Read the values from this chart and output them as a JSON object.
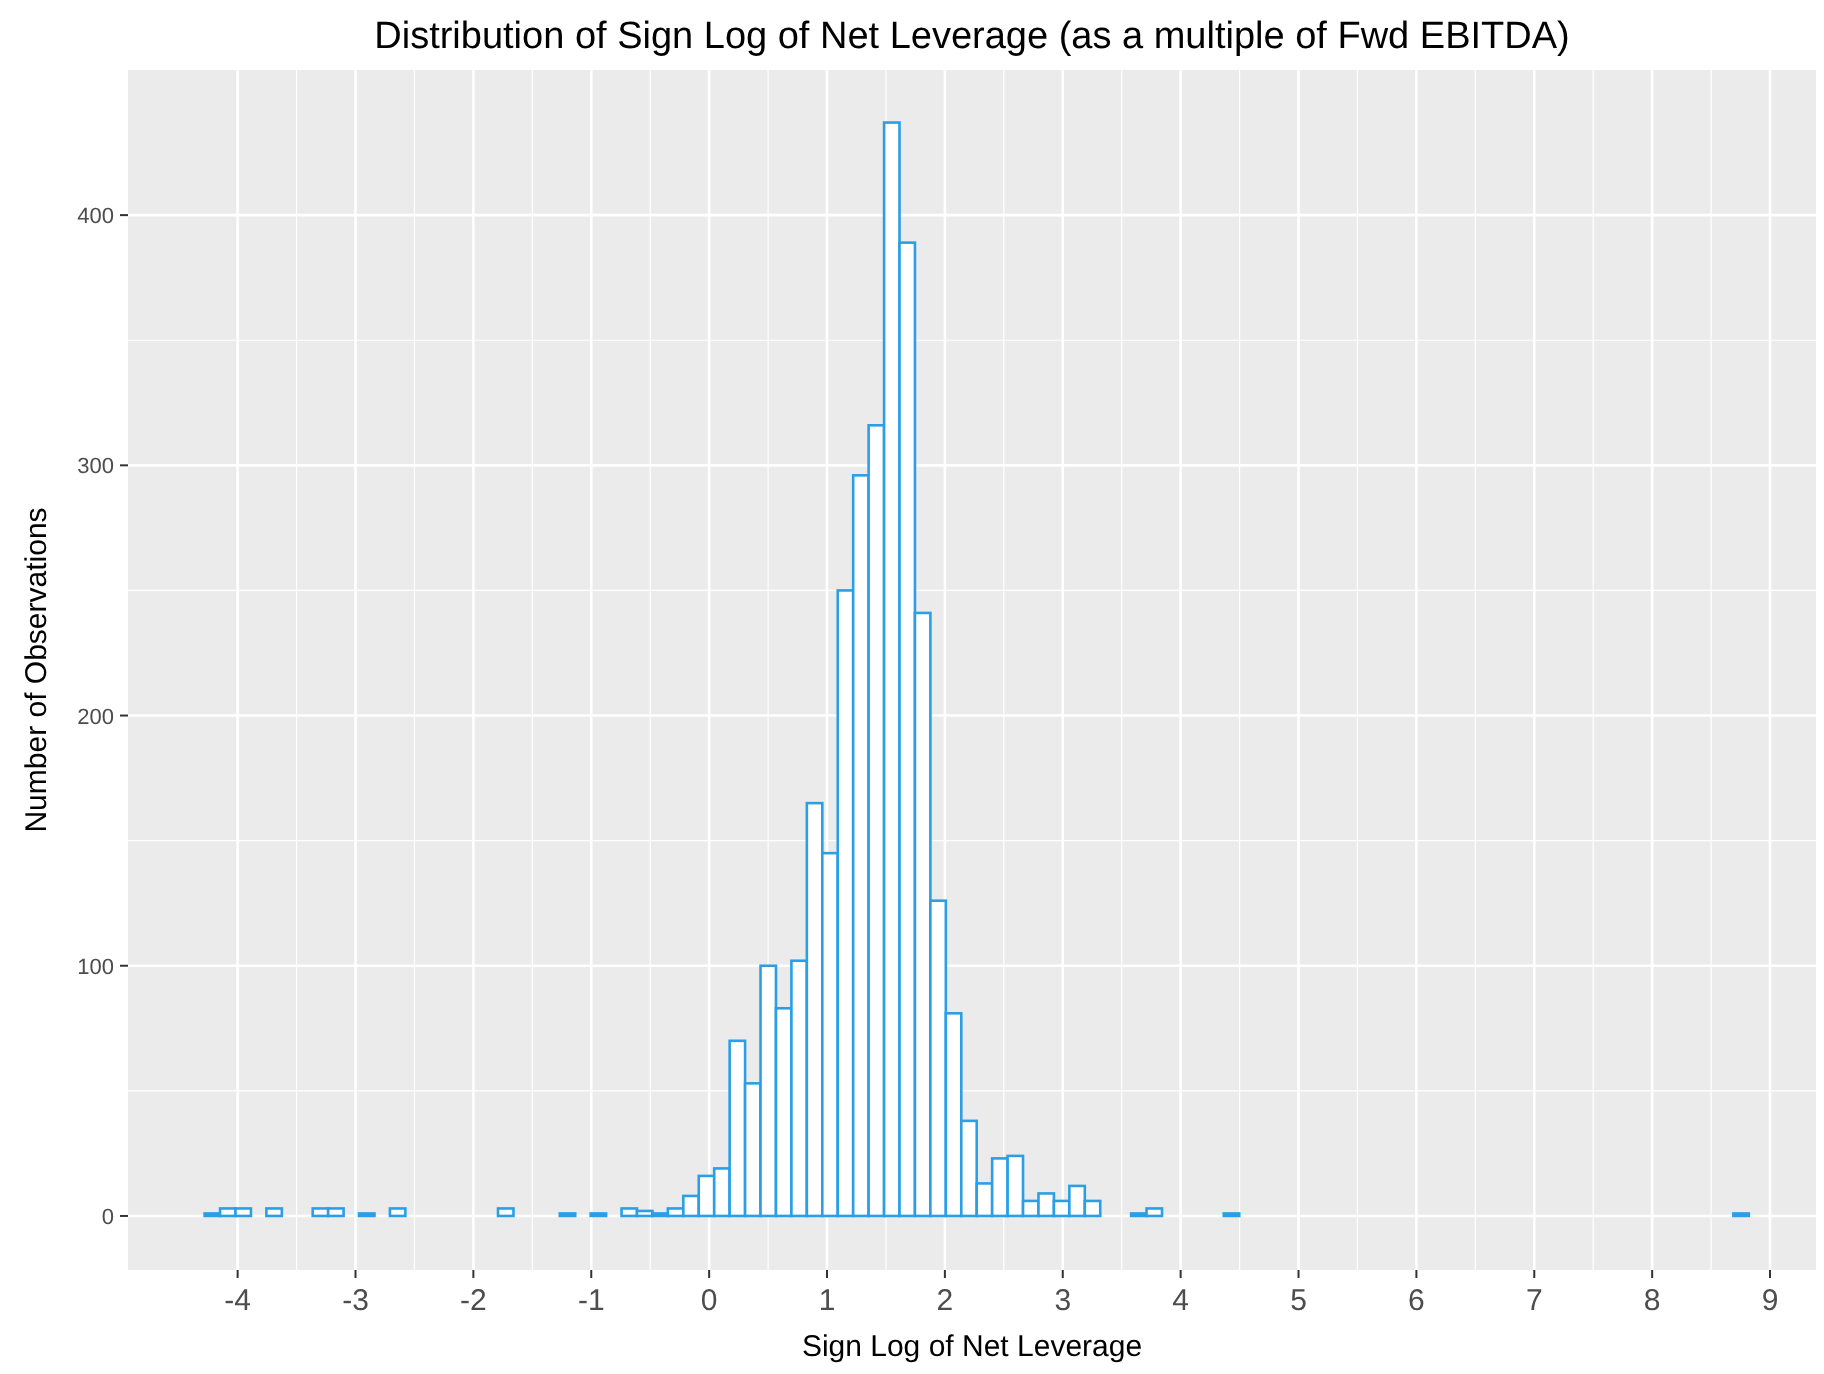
{
  "chart_data": {
    "type": "histogram",
    "title": "Distribution of Sign Log of Net Leverage (as a multiple of Fwd EBITDA)",
    "xlabel": "Sign Log of Net Leverage",
    "ylabel": "Number of Observations",
    "bins": [
      -4.28,
      -4.149,
      -4.018,
      -3.887,
      -3.756,
      -3.625,
      -3.494,
      -3.363,
      -3.232,
      -3.101,
      -2.97,
      -2.839,
      -2.708,
      -2.577,
      -2.446,
      -2.315,
      -2.184,
      -2.053,
      -1.922,
      -1.791,
      -1.66,
      -1.529,
      -1.398,
      -1.267,
      -1.136,
      -1.005,
      -0.874,
      -0.743,
      -0.612,
      -0.481,
      -0.35,
      -0.219,
      -0.088,
      0.043,
      0.174,
      0.305,
      0.436,
      0.567,
      0.698,
      0.829,
      0.96,
      1.091,
      1.222,
      1.353,
      1.484,
      1.615,
      1.746,
      1.877,
      2.008,
      2.139,
      2.27,
      2.401,
      2.532,
      2.663,
      2.794,
      2.925,
      3.056,
      3.187,
      3.318,
      3.449,
      3.58,
      3.711,
      3.842,
      3.973,
      4.104,
      4.235,
      4.366,
      4.497,
      4.628,
      4.759,
      4.89,
      5.021,
      5.152,
      5.283,
      5.414,
      5.545,
      5.676,
      5.807,
      5.938,
      6.069,
      6.2,
      6.331,
      6.462,
      6.593,
      6.724,
      6.855,
      6.986,
      7.117,
      7.248,
      7.379,
      7.51,
      7.641,
      7.772,
      7.903,
      8.034,
      8.165,
      8.296,
      8.427,
      8.558,
      8.689,
      8.82
    ],
    "values": [
      1,
      3,
      3,
      0,
      3,
      0,
      0,
      3,
      3,
      0,
      1,
      0,
      3,
      0,
      0,
      0,
      0,
      0,
      0,
      3,
      0,
      0,
      0,
      1,
      0,
      1,
      0,
      3,
      2,
      1,
      3,
      8,
      16,
      19,
      70,
      53,
      100,
      83,
      102,
      165,
      145,
      250,
      296,
      316,
      437,
      389,
      241,
      126,
      81,
      38,
      13,
      23,
      24,
      6,
      9,
      6,
      12,
      6,
      0,
      0,
      1,
      3,
      0,
      0,
      0,
      0,
      1,
      0,
      0,
      0,
      0,
      0,
      0,
      0,
      0,
      0,
      0,
      0,
      0,
      0,
      0,
      0,
      0,
      0,
      0,
      0,
      0,
      0,
      0,
      0,
      0,
      0,
      0,
      0,
      0,
      0,
      0,
      0,
      0,
      1
    ],
    "color": "#2b9fe6",
    "xlim": [
      -4.93,
      9.39
    ],
    "ylim": [
      -21.6,
      458
    ],
    "xticks": [
      -4,
      -3,
      -2,
      -1,
      0,
      1,
      2,
      3,
      4,
      5,
      6,
      7,
      8,
      9
    ],
    "yticks": [
      0,
      100,
      200,
      300,
      400
    ],
    "grid": true
  }
}
